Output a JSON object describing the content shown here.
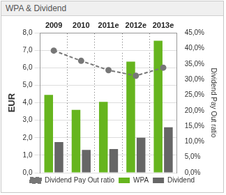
{
  "chart_data": {
    "type": "bar",
    "title": "WPA & Dividend",
    "categories": [
      "2009",
      "2010",
      "2011e",
      "2012e",
      "2013e"
    ],
    "series": [
      {
        "name": "WPA",
        "color": "#66b51e",
        "values": [
          4.45,
          3.6,
          4.05,
          6.35,
          7.55
        ]
      },
      {
        "name": "Dividend",
        "color": "#666666",
        "values": [
          1.75,
          1.3,
          1.35,
          2.0,
          2.6
        ]
      },
      {
        "name": "Dividend Pay Out ratio",
        "type": "line",
        "axis": "y2",
        "color": "#777777",
        "marker": "circle",
        "line_style": "dashed",
        "values": [
          39.3,
          36.0,
          33.0,
          31.2,
          33.8
        ]
      }
    ],
    "ylabel": "EUR",
    "y2label": "Dividend Pay Out ratio",
    "ylim": [
      0,
      8
    ],
    "yticks": [
      {
        "value": 0,
        "label": "0,0"
      },
      {
        "value": 1,
        "label": "1,0"
      },
      {
        "value": 2,
        "label": "2,0"
      },
      {
        "value": 3,
        "label": "3,0"
      },
      {
        "value": 4,
        "label": "4,0"
      },
      {
        "value": 5,
        "label": "5,0"
      },
      {
        "value": 6,
        "label": "6,0"
      },
      {
        "value": 7,
        "label": "7,0"
      },
      {
        "value": 8,
        "label": "8,0"
      }
    ],
    "y2lim": [
      0,
      45
    ],
    "y2ticks": [
      {
        "value": 0,
        "label": "0,0%"
      },
      {
        "value": 5,
        "label": "5,0%"
      },
      {
        "value": 10,
        "label": "10,0%"
      },
      {
        "value": 15,
        "label": "15,0%"
      },
      {
        "value": 20,
        "label": "20,0%"
      },
      {
        "value": 25,
        "label": "25,0%"
      },
      {
        "value": 30,
        "label": "30,0%"
      },
      {
        "value": 35,
        "label": "35,0%"
      },
      {
        "value": 40,
        "label": "40,0%"
      },
      {
        "value": 45,
        "label": "45,0%"
      }
    ],
    "grid": true,
    "legend": "bottom"
  }
}
